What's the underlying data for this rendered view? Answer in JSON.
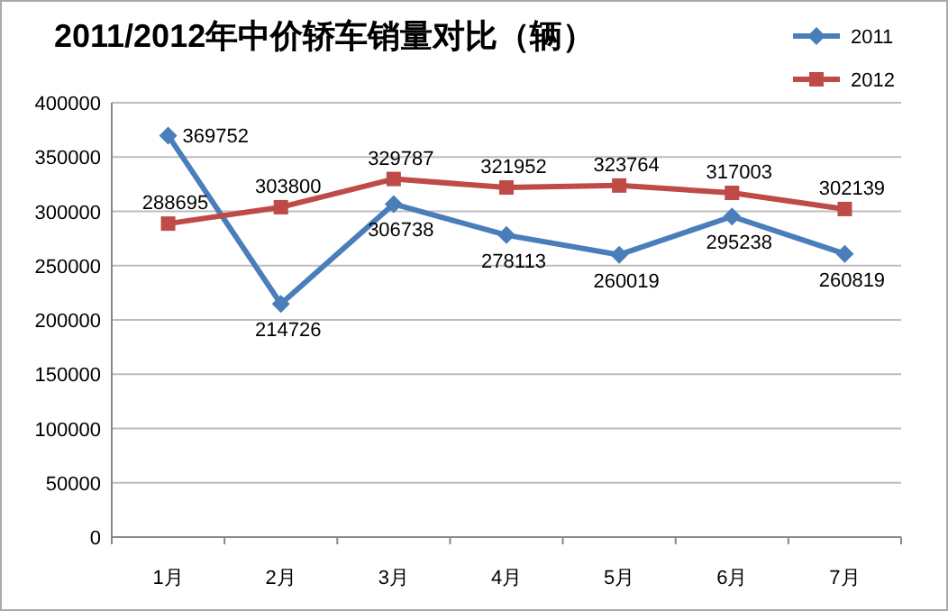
{
  "chart_data": {
    "type": "line",
    "title": "2011/2012年中价轿车销量对比（辆）",
    "categories": [
      "1月",
      "2月",
      "3月",
      "4月",
      "5月",
      "6月",
      "7月"
    ],
    "series": [
      {
        "name": "2011",
        "color": "#4a7ebb",
        "marker": "diamond",
        "values": [
          369752,
          214726,
          306738,
          278113,
          260019,
          295238,
          260819
        ]
      },
      {
        "name": "2012",
        "color": "#be4b48",
        "marker": "square",
        "values": [
          288695,
          303800,
          329787,
          321952,
          323764,
          317003,
          302139
        ]
      }
    ],
    "ylim": [
      0,
      400000
    ],
    "yticks": [
      0,
      50000,
      100000,
      150000,
      200000,
      250000,
      300000,
      350000,
      400000
    ],
    "grid": "y",
    "legend": "top right",
    "data_labels": true
  }
}
